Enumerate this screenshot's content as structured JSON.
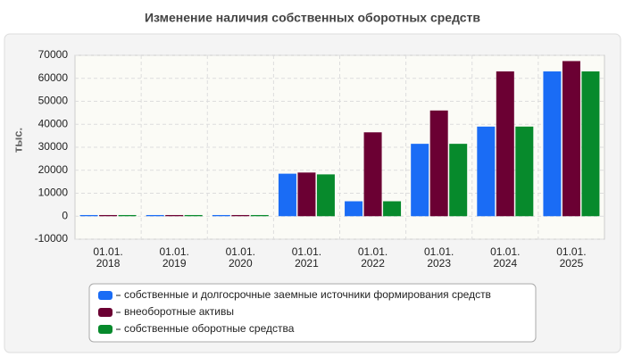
{
  "chart_data": {
    "type": "bar",
    "title": "Изменение наличия собственных оборотных средств",
    "y_label": "тыс.",
    "categories": [
      "01.01. 2018",
      "01.01. 2019",
      "01.01. 2020",
      "01.01. 2021",
      "01.01. 2022",
      "01.01. 2023",
      "01.01. 2024",
      "01.01. 2025"
    ],
    "series": [
      {
        "name": "собственные и долгосрочные заемные источники формирования средств",
        "color": "#1a6cf5",
        "values": [
          500,
          500,
          500,
          18500,
          6500,
          31500,
          39000,
          63000
        ]
      },
      {
        "name": "внеоборотные активы",
        "color": "#6b0033",
        "values": [
          500,
          500,
          500,
          19000,
          36500,
          46000,
          63000,
          67500
        ]
      },
      {
        "name": "собственные оборотные средства",
        "color": "#078a2c",
        "values": [
          500,
          500,
          500,
          18200,
          6500,
          31500,
          39000,
          63000
        ]
      }
    ],
    "ylim": [
      -10000,
      70000
    ],
    "yticks": [
      -10000,
      0,
      10000,
      20000,
      30000,
      40000,
      50000,
      60000,
      70000
    ],
    "grid": true
  }
}
